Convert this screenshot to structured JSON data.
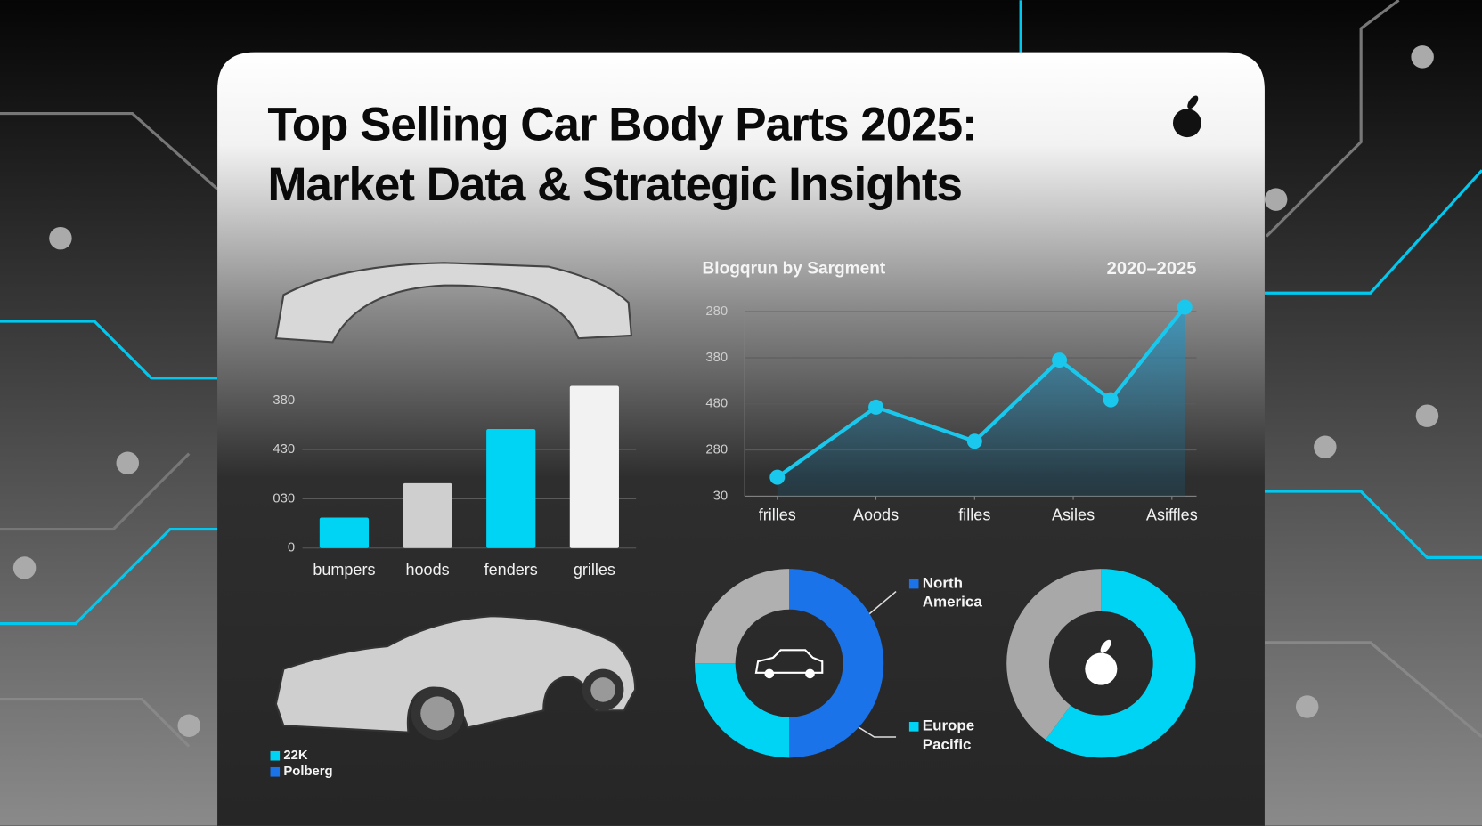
{
  "title_lines": [
    "Top Selling Car Body Parts 2025:",
    "Market Data & Strategic Insights"
  ],
  "legend_note": [
    {
      "label": "22K",
      "color": "#00d4f5"
    },
    {
      "label": "Polberg",
      "color": "#1a73e8"
    }
  ],
  "chart_data": [
    {
      "type": "bar",
      "categories": [
        "bumpers",
        "hoods",
        "fenders",
        "grilles"
      ],
      "values": [
        62,
        132,
        242,
        330
      ],
      "colors": [
        "#00d4f5",
        "#cfcfcf",
        "#00d4f5",
        "#f2f2f2"
      ],
      "ylim": [
        0,
        340
      ],
      "yticks": [
        0,
        {
          "value": 100,
          "label": "030"
        },
        {
          "value": 200,
          "label": "430"
        },
        {
          "value": 300,
          "label": "380"
        }
      ],
      "grid": true
    },
    {
      "type": "line",
      "title": "Blogqrun by Sargment",
      "subtitle": "2020–2025",
      "x": [
        0,
        1,
        2,
        2.86,
        3.38,
        4.13
      ],
      "values": [
        0.41,
        1.93,
        1.19,
        2.95,
        2.09,
        4.1
      ],
      "color": "#19c8ec",
      "area": true,
      "xlim": [
        -0.33,
        4.25
      ],
      "xticks": [
        {
          "value": 0,
          "label": "frilles"
        },
        {
          "value": 1,
          "label": "Aoods"
        },
        {
          "value": 2,
          "label": "filles"
        },
        {
          "value": 3,
          "label": "Asiles"
        },
        {
          "value": 4,
          "label": "Asiffles"
        }
      ],
      "ylim": [
        0,
        4.2
      ],
      "yticks": [
        {
          "value": 0,
          "label": "30"
        },
        {
          "value": 1,
          "label": "280"
        },
        {
          "value": 2,
          "label": "480"
        },
        {
          "value": 3,
          "label": "380"
        },
        {
          "value": 4,
          "label": "280"
        }
      ],
      "grid": true
    },
    {
      "type": "donut",
      "labels": [
        "North America",
        "Europe Pacific",
        null
      ],
      "values": [
        50,
        25,
        25
      ],
      "colors": [
        "#1a73e8",
        "#00d4f5",
        "#b0b0b0"
      ]
    },
    {
      "type": "donut",
      "labels": [
        null,
        null
      ],
      "values": [
        60,
        40
      ],
      "colors": [
        "#00d4f5",
        "#a8a8a8"
      ]
    }
  ]
}
